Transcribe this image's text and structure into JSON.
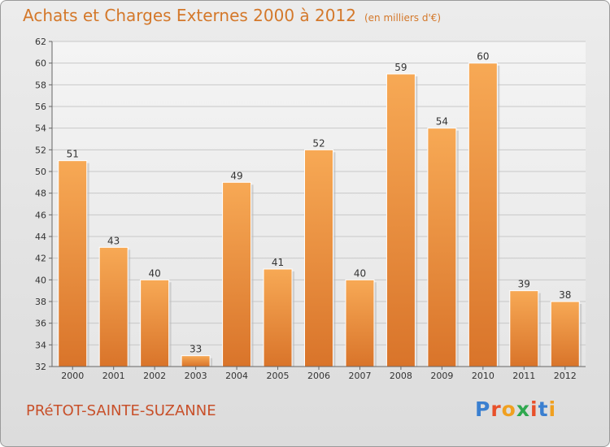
{
  "title": "Achats et Charges Externes 2000 à 2012",
  "subtitle": "(en milliers d'€)",
  "commune": "PRéTOT-SAINTE-SUZANNE",
  "logo": {
    "letters": [
      "P",
      "r",
      "o",
      "x",
      "i",
      "t",
      "i"
    ],
    "colors": [
      "#3a7fd0",
      "#e8502a",
      "#f0a020",
      "#2fa84f",
      "#e8502a",
      "#3a7fd0",
      "#f0a020"
    ]
  },
  "colors": {
    "bar_top": "#f7a955",
    "bar_bottom": "#d9742a",
    "title": "#d4782a",
    "commune": "#c8502a"
  },
  "chart_data": {
    "type": "bar",
    "categories": [
      "2000",
      "2001",
      "2002",
      "2003",
      "2004",
      "2005",
      "2006",
      "2007",
      "2008",
      "2009",
      "2010",
      "2011",
      "2012"
    ],
    "values": [
      51,
      43,
      40,
      33,
      49,
      41,
      52,
      40,
      59,
      54,
      60,
      39,
      38
    ],
    "ylim": [
      32,
      62
    ],
    "yticks": [
      32,
      34,
      36,
      38,
      40,
      42,
      44,
      46,
      48,
      50,
      52,
      54,
      56,
      58,
      60,
      62
    ],
    "grid": true,
    "legend": "none"
  }
}
